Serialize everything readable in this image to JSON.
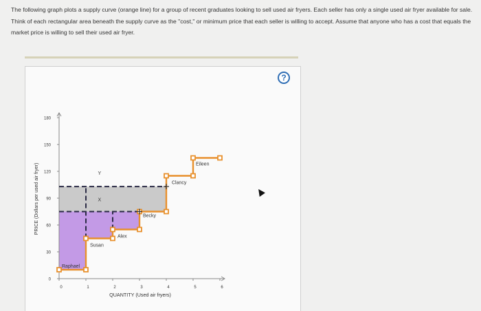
{
  "question": {
    "text": "The following graph plots a supply curve (orange line) for a group of recent graduates looking to sell used air fryers. Each seller has only a single used air fryer available for sale. Think of each rectangular area beneath the supply curve as the \"cost,\" or minimum price that each seller is willing to accept. Assume that anyone who has a cost that equals the market price is willing to sell their used air fryer."
  },
  "help": {
    "label": "?",
    "icon": "help-circle-icon"
  },
  "colors": {
    "supply_curve": "#e8902c",
    "purple_area": "#c39ae6",
    "gray_area": "#cacaca",
    "dashed_line": "#2b2b45"
  },
  "chart_data": {
    "type": "step",
    "xlabel": "QUANTITY (Used air fryers)",
    "ylabel": "PRICE (Dollars per used air fryer)",
    "xlim": [
      0,
      6
    ],
    "ylim": [
      0,
      180
    ],
    "xticks": [
      0,
      1,
      2,
      3,
      4,
      5,
      6
    ],
    "yticks": [
      0,
      30,
      60,
      90,
      120,
      150,
      180
    ],
    "sellers": [
      {
        "name": "Raphael",
        "cost": 10
      },
      {
        "name": "Susan",
        "cost": 45
      },
      {
        "name": "Alex",
        "cost": 55
      },
      {
        "name": "Becky",
        "cost": 75
      },
      {
        "name": "Clancy",
        "cost": 115
      },
      {
        "name": "Eileen",
        "cost": 135
      }
    ],
    "price_lines": [
      {
        "label": "X",
        "price": 75
      },
      {
        "label": "Y",
        "price": 103
      }
    ],
    "areas": [
      {
        "name": "producer-surplus",
        "color": "purple",
        "price": 75,
        "quantity": 3
      },
      {
        "name": "gray-area",
        "color": "gray",
        "from_price": 75,
        "to_price": 103,
        "quantity": 4
      }
    ]
  }
}
